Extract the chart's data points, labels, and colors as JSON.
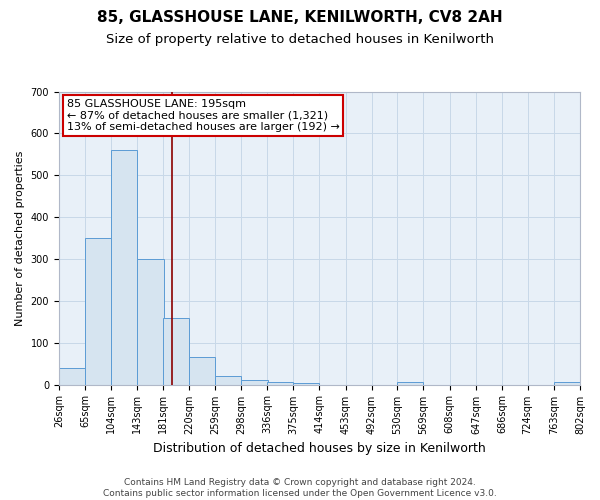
{
  "title": "85, GLASSHOUSE LANE, KENILWORTH, CV8 2AH",
  "subtitle": "Size of property relative to detached houses in Kenilworth",
  "xlabel": "Distribution of detached houses by size in Kenilworth",
  "ylabel": "Number of detached properties",
  "footer_line1": "Contains HM Land Registry data © Crown copyright and database right 2024.",
  "footer_line2": "Contains public sector information licensed under the Open Government Licence v3.0.",
  "bins": [
    26,
    65,
    104,
    143,
    181,
    220,
    259,
    298,
    336,
    375,
    414,
    453,
    492,
    530,
    569,
    608,
    647,
    686,
    724,
    763,
    802
  ],
  "counts": [
    40,
    350,
    560,
    300,
    160,
    65,
    20,
    10,
    5,
    3,
    0,
    0,
    0,
    5,
    0,
    0,
    0,
    0,
    0,
    5
  ],
  "bar_facecolor": "#d6e4f0",
  "bar_edgecolor": "#5b9bd5",
  "vline_x": 195,
  "vline_color": "#8b0000",
  "annotation_line1": "85 GLASSHOUSE LANE: 195sqm",
  "annotation_line2": "← 87% of detached houses are smaller (1,321)",
  "annotation_line3": "13% of semi-detached houses are larger (192) →",
  "annotation_box_facecolor": "#ffffff",
  "annotation_box_edgecolor": "#cc0000",
  "ylim": [
    0,
    700
  ],
  "yticks": [
    0,
    100,
    200,
    300,
    400,
    500,
    600,
    700
  ],
  "bg_color": "#ffffff",
  "plot_bg_color": "#e8f0f8",
  "grid_color": "#c8d8e8",
  "title_fontsize": 11,
  "subtitle_fontsize": 9.5,
  "xlabel_fontsize": 9,
  "ylabel_fontsize": 8,
  "tick_fontsize": 7,
  "annotation_fontsize": 8,
  "footer_fontsize": 6.5
}
